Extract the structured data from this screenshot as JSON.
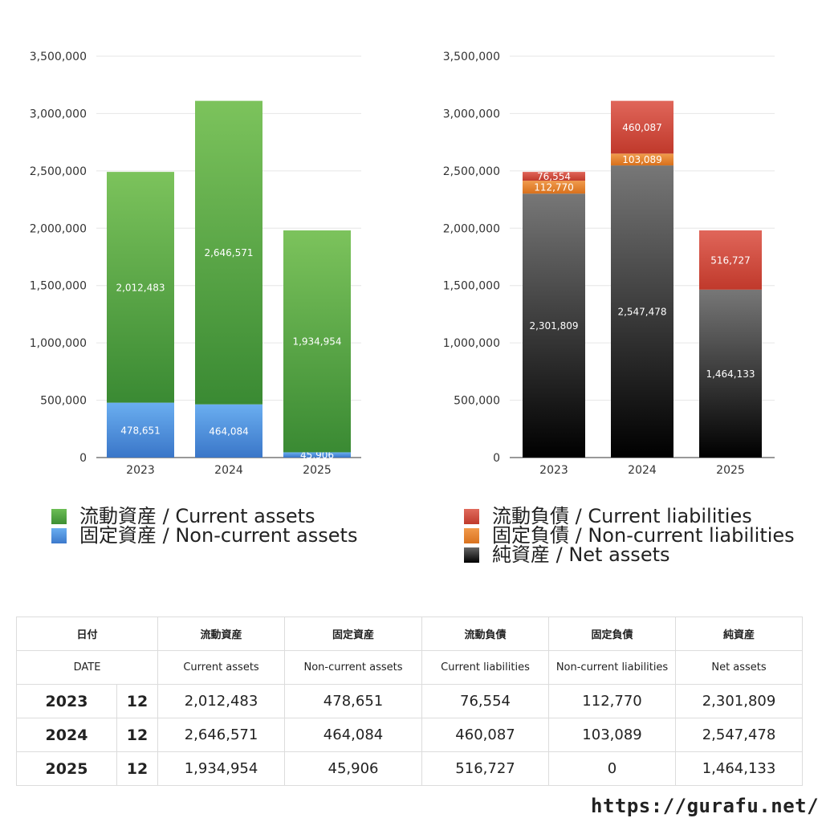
{
  "colors": {
    "current_assets": "#4f9e3f",
    "non_current_assets": "#3e7fd2",
    "current_liabilities": "#c9473a",
    "non_current_liabilities": "#e07d2b",
    "net_assets": "#2a2a2a",
    "grid": "#e6e6e6",
    "axis": "#333333"
  },
  "chart_data": [
    {
      "type": "bar",
      "stacked": true,
      "categories": [
        "2023",
        "2024",
        "2025"
      ],
      "ylim": [
        0,
        3500000
      ],
      "yticks": [
        "0",
        "500,000",
        "1,000,000",
        "1,500,000",
        "2,000,000",
        "2,500,000",
        "3,000,000",
        "3,500,000"
      ],
      "grid": true,
      "legend_position": "bottom",
      "series": [
        {
          "name": "固定資産 / Non-current assets",
          "values": [
            478651,
            464084,
            45906
          ],
          "labels": [
            "478,651",
            "464,084",
            "45,906"
          ],
          "color_key": "non_current_assets"
        },
        {
          "name": "流動資産 / Current assets",
          "values": [
            2012483,
            2646571,
            1934954
          ],
          "labels": [
            "2,012,483",
            "2,646,571",
            "1,934,954"
          ],
          "color_key": "current_assets"
        }
      ]
    },
    {
      "type": "bar",
      "stacked": true,
      "categories": [
        "2023",
        "2024",
        "2025"
      ],
      "ylim": [
        0,
        3500000
      ],
      "yticks": [
        "0",
        "500,000",
        "1,000,000",
        "1,500,000",
        "2,000,000",
        "2,500,000",
        "3,000,000",
        "3,500,000"
      ],
      "grid": true,
      "legend_position": "bottom",
      "series": [
        {
          "name": "純資産 / Net assets",
          "values": [
            2301809,
            2547478,
            1464133
          ],
          "labels": [
            "2,301,809",
            "2,547,478",
            "1,464,133"
          ],
          "color_key": "net_assets"
        },
        {
          "name": "固定負債 / Non-current liabilities",
          "values": [
            112770,
            103089,
            0
          ],
          "labels": [
            "112,770",
            "103,089",
            ""
          ],
          "color_key": "non_current_liabilities"
        },
        {
          "name": "流動負債 / Current liabilities",
          "values": [
            76554,
            460087,
            516727
          ],
          "labels": [
            "76,554",
            "460,087",
            "516,727"
          ],
          "color_key": "current_liabilities"
        }
      ]
    }
  ],
  "legend_left": [
    {
      "label": "流動資産 / Current assets",
      "color_key": "current_assets"
    },
    {
      "label": "固定資産 / Non-current assets",
      "color_key": "non_current_assets"
    }
  ],
  "legend_right": [
    {
      "label": "流動負債 / Current liabilities",
      "color_key": "current_liabilities"
    },
    {
      "label": "固定負債 / Non-current liabilities",
      "color_key": "non_current_liabilities"
    },
    {
      "label": "純資産 / Net assets",
      "color_key": "net_assets"
    }
  ],
  "table": {
    "header_jp": {
      "date": "日付",
      "current_assets": "流動資産",
      "non_current_assets": "固定資産",
      "current_liabilities": "流動負債",
      "non_current_liabilities": "固定負債",
      "net_assets": "純資産"
    },
    "header_en": {
      "date": "DATE",
      "current_assets": "Current assets",
      "non_current_assets": "Non-current assets",
      "current_liabilities": "Current liabilities",
      "non_current_liabilities": "Non-current liabilities",
      "net_assets": "Net assets"
    },
    "rows": [
      {
        "year": "2023",
        "month": "12",
        "current_assets": "2,012,483",
        "non_current_assets": "478,651",
        "current_liabilities": "76,554",
        "non_current_liabilities": "112,770",
        "net_assets": "2,301,809"
      },
      {
        "year": "2024",
        "month": "12",
        "current_assets": "2,646,571",
        "non_current_assets": "464,084",
        "current_liabilities": "460,087",
        "non_current_liabilities": "103,089",
        "net_assets": "2,547,478"
      },
      {
        "year": "2025",
        "month": "12",
        "current_assets": "1,934,954",
        "non_current_assets": "45,906",
        "current_liabilities": "516,727",
        "non_current_liabilities": "0",
        "net_assets": "1,464,133"
      }
    ]
  },
  "footer": {
    "url": "https://gurafu.net/"
  }
}
